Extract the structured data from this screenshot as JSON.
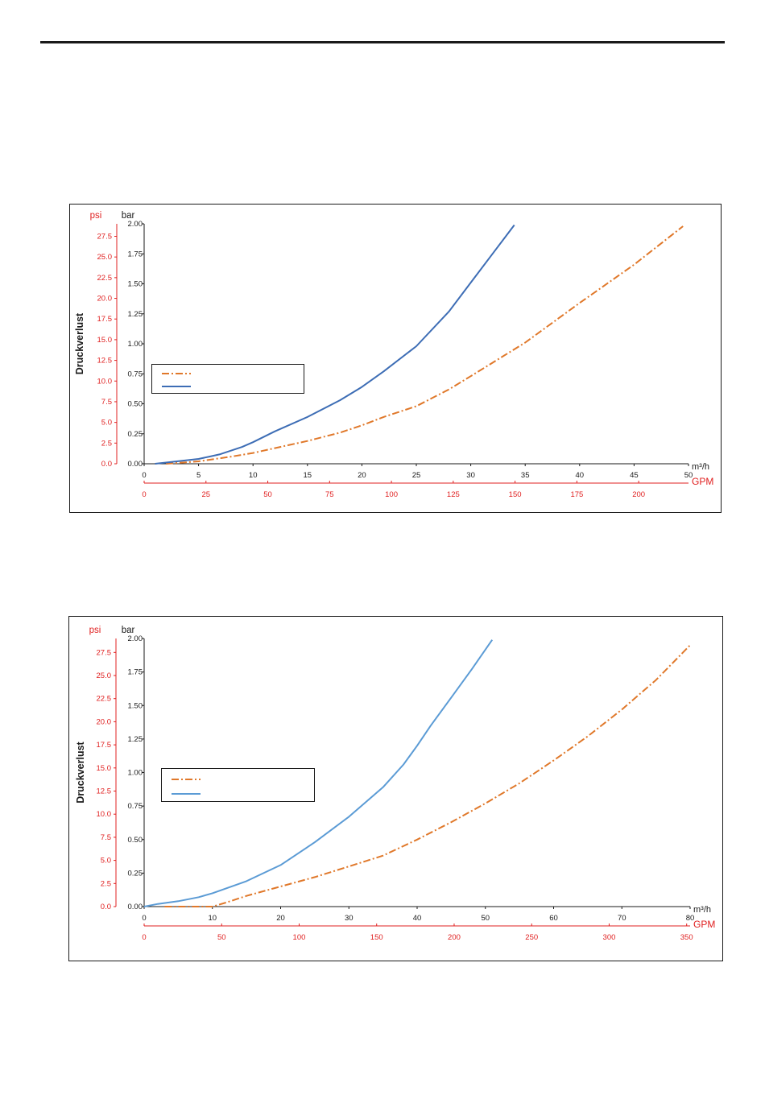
{
  "colors": {
    "axis": "#1a1a1a",
    "secondary_axis": "#e02020",
    "dash_series": "#e0782a",
    "solid_series_1": "#3d6db5",
    "solid_series_2": "#5b9bd5"
  },
  "chart_data": [
    {
      "type": "line",
      "ylabel": "Druckverlust",
      "y_unit": "bar",
      "y2_unit": "psi",
      "x_unit": "m³/h",
      "x2_unit": "GPM",
      "xlim": [
        0,
        50
      ],
      "ylim": [
        0,
        2.0
      ],
      "x_ticks": [
        "0",
        "5",
        "10",
        "15",
        "20",
        "25",
        "30",
        "35",
        "40",
        "45",
        "50"
      ],
      "y_ticks": [
        "0.00",
        "0.25",
        "0.50",
        "0.75",
        "1.00",
        "1.25",
        "1.50",
        "1.75",
        "2.00"
      ],
      "psi_ticks": [
        "0.0",
        "2.5",
        "5.0",
        "7.5",
        "10.0",
        "12.5",
        "15.0",
        "17.5",
        "20.0",
        "22.5",
        "25.0",
        "27.5"
      ],
      "gpm_ticks": [
        "0",
        "25",
        "50",
        "75",
        "100",
        "125",
        "150",
        "175",
        "200"
      ],
      "legend_placement": "center-left",
      "series": [
        {
          "style": "dash-dot",
          "color": "#e0782a",
          "x": [
            2,
            5,
            8,
            10,
            12,
            15,
            18,
            20,
            22,
            25,
            28,
            30,
            35,
            40,
            45,
            49.5
          ],
          "y": [
            0.0,
            0.02,
            0.06,
            0.09,
            0.13,
            0.19,
            0.26,
            0.32,
            0.39,
            0.48,
            0.62,
            0.73,
            1.01,
            1.34,
            1.66,
            1.98
          ]
        },
        {
          "style": "solid",
          "color": "#3d6db5",
          "x": [
            1,
            3,
            5,
            6,
            7,
            8,
            9,
            10,
            12,
            15,
            18,
            20,
            22,
            25,
            28,
            30,
            32,
            34
          ],
          "y": [
            0.0,
            0.02,
            0.04,
            0.06,
            0.08,
            0.11,
            0.14,
            0.18,
            0.27,
            0.39,
            0.53,
            0.64,
            0.77,
            0.98,
            1.27,
            1.51,
            1.75,
            1.99
          ]
        }
      ]
    },
    {
      "type": "line",
      "ylabel": "Druckverlust",
      "y_unit": "bar",
      "y2_unit": "psi",
      "x_unit": "m³/h",
      "x2_unit": "GPM",
      "xlim": [
        0,
        80
      ],
      "ylim": [
        0,
        2.0
      ],
      "x_ticks": [
        "0",
        "10",
        "20",
        "30",
        "40",
        "50",
        "60",
        "70",
        "80"
      ],
      "y_ticks": [
        "0.00",
        "0.25",
        "0.50",
        "0.75",
        "1.00",
        "1.25",
        "1.50",
        "1.75",
        "2.00"
      ],
      "psi_ticks": [
        "0.0",
        "2.5",
        "5.0",
        "7.5",
        "10.0",
        "12.5",
        "15.0",
        "17.5",
        "20.0",
        "22.5",
        "25.0",
        "27.5"
      ],
      "gpm_ticks": [
        "0",
        "50",
        "100",
        "150",
        "200",
        "250",
        "300",
        "350"
      ],
      "legend_placement": "center-left",
      "series": [
        {
          "style": "dash-dot",
          "color": "#e0782a",
          "x": [
            3,
            6,
            8,
            10,
            12,
            15,
            20,
            25,
            30,
            35,
            40,
            45,
            50,
            55,
            60,
            65,
            70,
            75,
            80
          ],
          "y": [
            0.0,
            0.0,
            0.0,
            0.0,
            0.03,
            0.08,
            0.15,
            0.22,
            0.3,
            0.38,
            0.5,
            0.63,
            0.77,
            0.92,
            1.09,
            1.27,
            1.47,
            1.69,
            1.95
          ]
        },
        {
          "style": "solid",
          "color": "#5b9bd5",
          "x": [
            0,
            2,
            5,
            8,
            10,
            15,
            20,
            25,
            30,
            35,
            38,
            40,
            42,
            45,
            48,
            51
          ],
          "y": [
            0.0,
            0.02,
            0.04,
            0.07,
            0.1,
            0.19,
            0.31,
            0.48,
            0.67,
            0.89,
            1.06,
            1.2,
            1.35,
            1.56,
            1.77,
            1.99
          ]
        }
      ]
    }
  ]
}
